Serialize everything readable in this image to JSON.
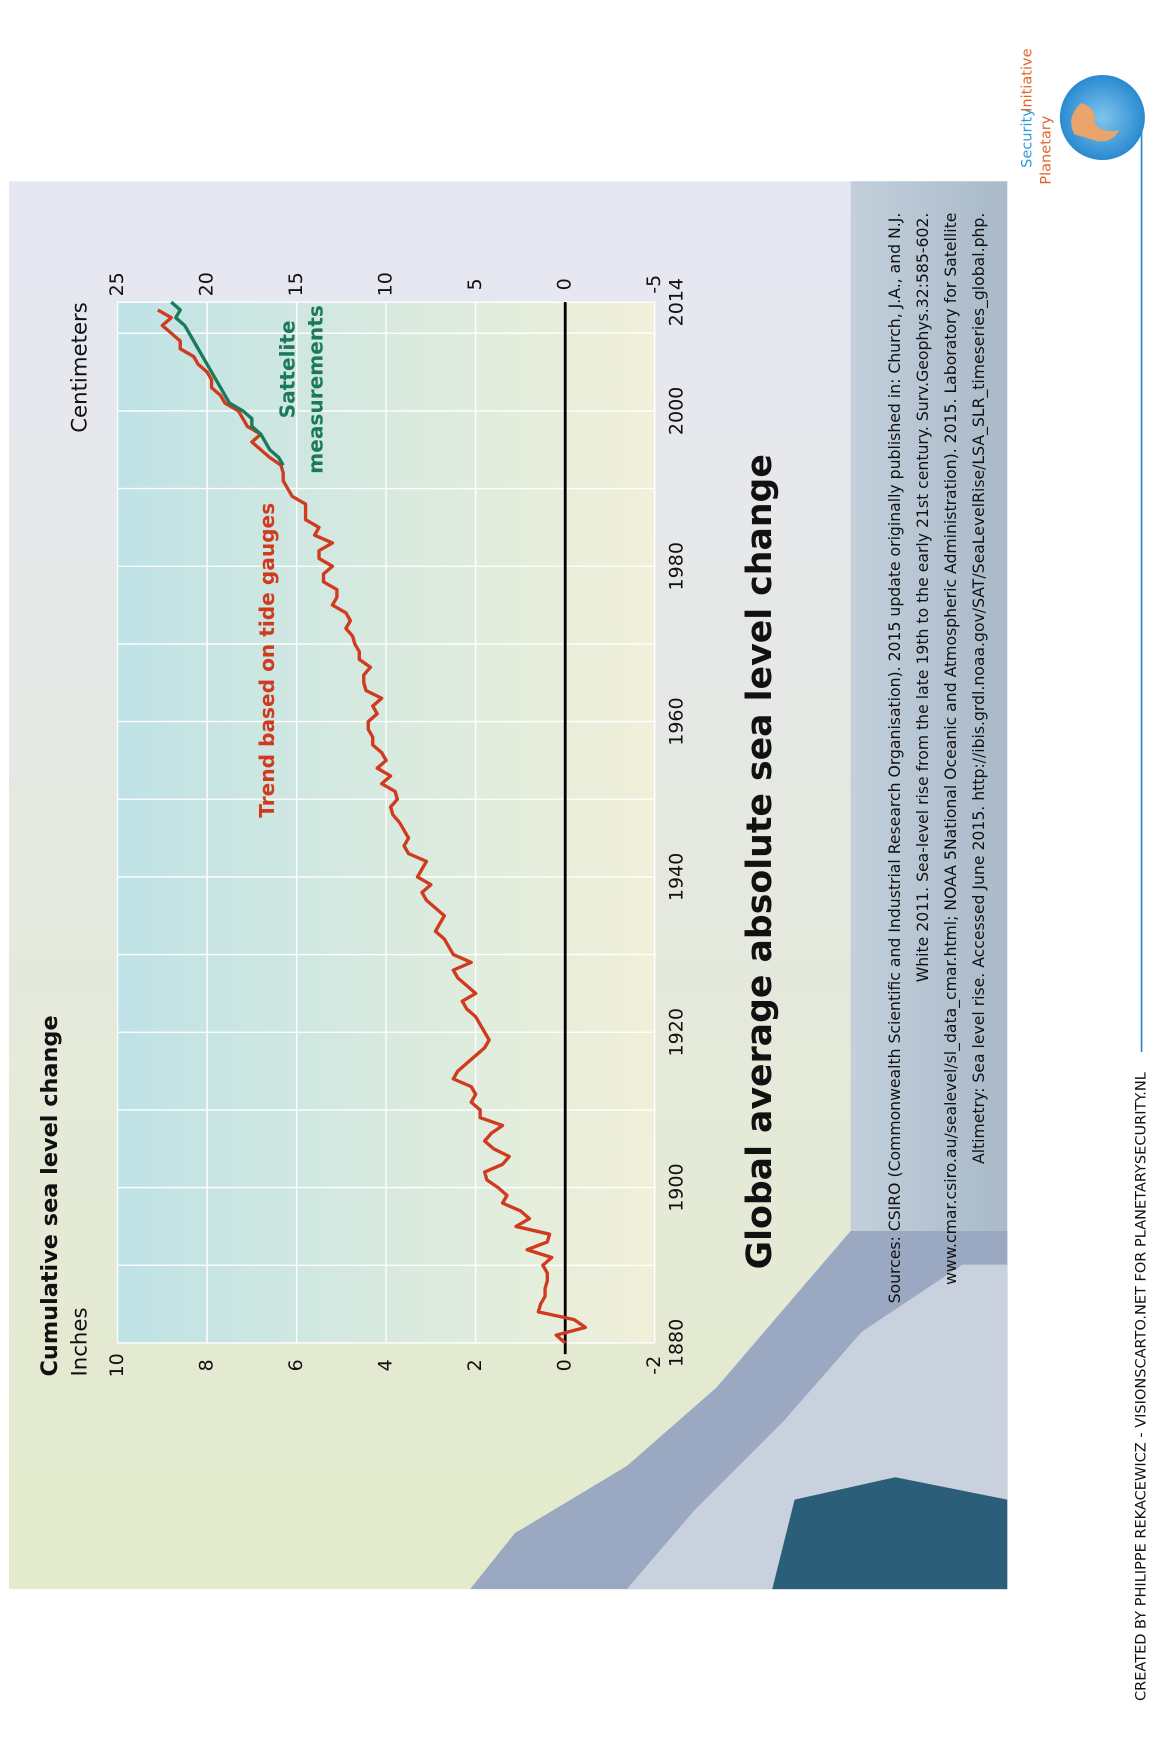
{
  "chart_data": {
    "type": "line",
    "title": "Global average absolute sea level change",
    "y_label": "Cumulative sea level change",
    "y_unit": "Inches",
    "y2_unit": "Centimeters",
    "xlim": [
      1880,
      2014
    ],
    "xticks": [
      1880,
      1900,
      1920,
      1940,
      1960,
      1980,
      2000,
      2014
    ],
    "xminor_ticks": [
      1890,
      1910,
      1930,
      1950,
      1970,
      1990,
      2010
    ],
    "ylim": [
      -2,
      10
    ],
    "yticks": [
      -2,
      0,
      2,
      4,
      6,
      8,
      10
    ],
    "y2lim": [
      -5,
      25
    ],
    "y2ticks": [
      -5,
      0,
      5,
      10,
      15,
      20,
      25
    ],
    "grid": true,
    "series": [
      {
        "name": "Trend based on tide gauges",
        "color": "#d03a1e",
        "x": [
          1880,
          1881,
          1882,
          1883,
          1884,
          1885,
          1886,
          1887,
          1888,
          1889,
          1890,
          1891,
          1892,
          1893,
          1894,
          1895,
          1896,
          1897,
          1898,
          1899,
          1900,
          1901,
          1902,
          1903,
          1904,
          1905,
          1906,
          1907,
          1908,
          1909,
          1910,
          1911,
          1912,
          1913,
          1914,
          1915,
          1916,
          1917,
          1918,
          1919,
          1920,
          1921,
          1922,
          1923,
          1924,
          1925,
          1926,
          1927,
          1928,
          1929,
          1930,
          1931,
          1932,
          1933,
          1934,
          1935,
          1936,
          1937,
          1938,
          1939,
          1940,
          1941,
          1942,
          1943,
          1944,
          1945,
          1946,
          1947,
          1948,
          1949,
          1950,
          1951,
          1952,
          1953,
          1954,
          1955,
          1956,
          1957,
          1958,
          1959,
          1960,
          1961,
          1962,
          1963,
          1964,
          1965,
          1966,
          1967,
          1968,
          1969,
          1970,
          1971,
          1972,
          1973,
          1974,
          1975,
          1976,
          1977,
          1978,
          1979,
          1980,
          1981,
          1982,
          1983,
          1984,
          1985,
          1986,
          1987,
          1988,
          1989,
          1990,
          1991,
          1992,
          1993,
          1994,
          1995,
          1996,
          1997,
          1998,
          1999,
          2000,
          2001,
          2002,
          2003,
          2004,
          2005,
          2006,
          2007,
          2008,
          2009,
          2010,
          2011,
          2012,
          2013
        ],
        "values": [
          0,
          0.2,
          -0.45,
          -0.2,
          0.6,
          0.55,
          0.45,
          0.45,
          0.4,
          0.4,
          0.5,
          0.3,
          0.85,
          0.4,
          0.35,
          1.1,
          0.8,
          1.0,
          1.4,
          1.3,
          1.5,
          1.75,
          1.8,
          1.4,
          1.25,
          1.6,
          1.8,
          1.65,
          1.4,
          1.9,
          1.9,
          2.1,
          2.0,
          2.1,
          2.5,
          2.4,
          2.2,
          2.0,
          1.8,
          1.7,
          1.8,
          1.9,
          2.0,
          2.2,
          2.3,
          2.0,
          2.2,
          2.4,
          2.5,
          2.1,
          2.5,
          2.6,
          2.7,
          2.9,
          2.8,
          2.7,
          2.9,
          3.1,
          3.2,
          3.0,
          3.3,
          3.2,
          3.1,
          3.5,
          3.6,
          3.5,
          3.6,
          3.7,
          3.85,
          3.9,
          3.75,
          3.8,
          4.1,
          3.9,
          4.2,
          4.0,
          4.1,
          4.3,
          4.3,
          4.4,
          4.4,
          4.2,
          4.3,
          4.1,
          4.45,
          4.5,
          4.5,
          4.35,
          4.6,
          4.6,
          4.7,
          4.75,
          4.9,
          4.8,
          4.9,
          5.2,
          5.1,
          5.1,
          5.4,
          5.4,
          5.2,
          5.5,
          5.5,
          5.2,
          5.6,
          5.5,
          5.8,
          5.8,
          5.8,
          6.1,
          6.2,
          6.3,
          6.3,
          6.35,
          6.6,
          6.8,
          7.0,
          6.8,
          7.1,
          7.2,
          7.3,
          7.6,
          7.7,
          7.9,
          7.9,
          8.0,
          8.2,
          8.3,
          8.6,
          8.6,
          8.8,
          9.0,
          8.8,
          9.1
        ]
      },
      {
        "name": "Sattelite measurements",
        "color": "#1a7a5a",
        "x": [
          1993,
          1994,
          1995,
          1996,
          1997,
          1998,
          1999,
          2000,
          2001,
          2002,
          2003,
          2004,
          2005,
          2006,
          2007,
          2008,
          2009,
          2010,
          2011,
          2012,
          2013,
          2014
        ],
        "values": [
          6.3,
          6.4,
          6.6,
          6.7,
          6.8,
          7.0,
          7.0,
          7.2,
          7.5,
          7.6,
          7.7,
          7.8,
          7.9,
          8.0,
          8.1,
          8.2,
          8.3,
          8.4,
          8.5,
          8.7,
          8.6,
          8.8
        ]
      }
    ],
    "annotations": [
      "Trend based on tide gauges",
      "Sattelite",
      "measurements"
    ],
    "sources": [
      "Sources: CSIRO (Commonwealth Scientific and Industrial Research Organisation). 2015 update originally published in: Church, J.A., and N.J.",
      "White 2011. Sea-level rise from the late 19th to the early 21st century. Surv.Geophys.32:585-602.",
      "www.cmar.csiro.au/sealevel/sl_data_cmar.html; NOAA 5National Oceanic and Atmospheric Administration). 2015. Laboratory for Satellite",
      "Altimetry: Sea level rise. Accessed June 2015. http://ibis.grdl.noaa.gov/SAT/SeaLevelRise/LSA_SLR_timeseries_global.php."
    ],
    "credit": "CREATED BY PHILIPPE REKACEWICZ - VISIONSCARTO.NET FOR PLANETARYSECURITY.NL",
    "logo": [
      "Planetary",
      "Security",
      "Initiative"
    ]
  }
}
